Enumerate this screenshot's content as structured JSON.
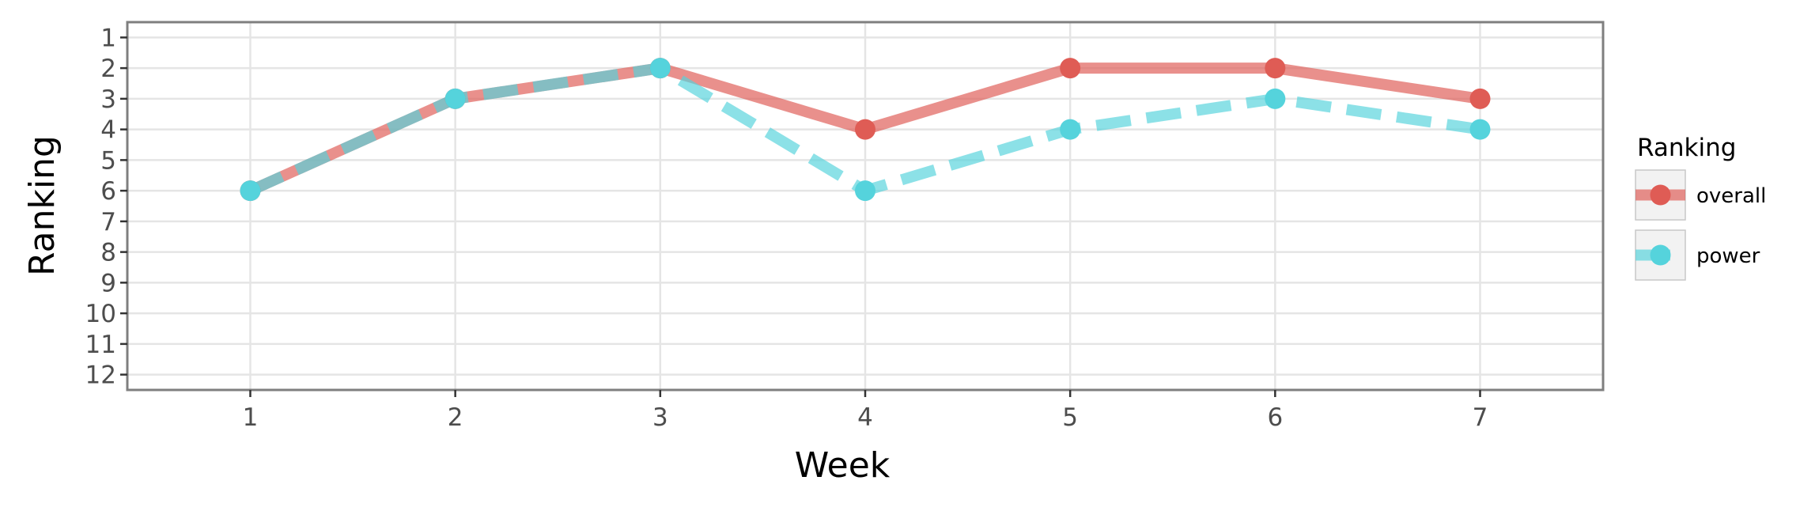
{
  "chart_data": {
    "type": "line",
    "xlabel": "Week",
    "ylabel": "Ranking",
    "x": [
      1,
      2,
      3,
      4,
      5,
      6,
      7
    ],
    "xlim": [
      0.4,
      7.6
    ],
    "ylim": [
      12.5,
      0.5
    ],
    "y_reversed": true,
    "x_ticks": [
      "1",
      "2",
      "3",
      "4",
      "5",
      "6",
      "7"
    ],
    "y_ticks": [
      "1",
      "2",
      "3",
      "4",
      "5",
      "6",
      "7",
      "8",
      "9",
      "10",
      "11",
      "12"
    ],
    "grid": true,
    "legend_title": "Ranking",
    "legend_position": "right",
    "series": [
      {
        "name": "overall",
        "values": [
          6,
          3,
          2,
          4,
          2,
          2,
          3
        ],
        "color": "#df5c55",
        "linestyle": "solid"
      },
      {
        "name": "power",
        "values": [
          6,
          3,
          2,
          6,
          4,
          3,
          4
        ],
        "color": "#55d3dc",
        "linestyle": "dashed"
      }
    ]
  }
}
